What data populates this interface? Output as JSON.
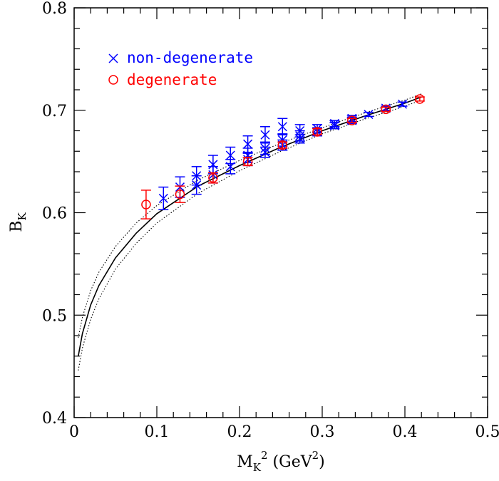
{
  "chart_data": {
    "type": "scatter",
    "xlim": [
      0,
      0.5
    ],
    "ylim": [
      0.4,
      0.8
    ],
    "x_ticks": [
      "0",
      "0.1",
      "0.2",
      "0.3",
      "0.4",
      "0.5"
    ],
    "y_ticks": [
      "0.4",
      "0.5",
      "0.6",
      "0.7",
      "0.8"
    ],
    "xlabel": {
      "base": "M",
      "sub": "K",
      "sup": "2",
      "unit_open": " (GeV",
      "unit_sup": "2",
      "unit_close": ")"
    },
    "ylabel": {
      "base": "B",
      "sub": "K"
    },
    "legend_position": "top-left",
    "series": [
      {
        "name": "non-degenerate",
        "marker": "cross",
        "color": "#0000ff",
        "points": [
          {
            "x": 0.108,
            "y": 0.614,
            "err": 0.011
          },
          {
            "x": 0.128,
            "y": 0.625,
            "err": 0.01
          },
          {
            "x": 0.148,
            "y": 0.627,
            "err": 0.009
          },
          {
            "x": 0.148,
            "y": 0.636,
            "err": 0.009
          },
          {
            "x": 0.168,
            "y": 0.637,
            "err": 0.008
          },
          {
            "x": 0.168,
            "y": 0.647,
            "err": 0.009
          },
          {
            "x": 0.189,
            "y": 0.645,
            "err": 0.007
          },
          {
            "x": 0.189,
            "y": 0.656,
            "err": 0.008
          },
          {
            "x": 0.21,
            "y": 0.652,
            "err": 0.006
          },
          {
            "x": 0.21,
            "y": 0.656,
            "err": 0.007
          },
          {
            "x": 0.21,
            "y": 0.667,
            "err": 0.008
          },
          {
            "x": 0.231,
            "y": 0.659,
            "err": 0.005
          },
          {
            "x": 0.231,
            "y": 0.663,
            "err": 0.006
          },
          {
            "x": 0.231,
            "y": 0.676,
            "err": 0.008
          },
          {
            "x": 0.252,
            "y": 0.666,
            "err": 0.005
          },
          {
            "x": 0.252,
            "y": 0.671,
            "err": 0.006
          },
          {
            "x": 0.252,
            "y": 0.684,
            "err": 0.008
          },
          {
            "x": 0.273,
            "y": 0.672,
            "err": 0.004
          },
          {
            "x": 0.273,
            "y": 0.675,
            "err": 0.005
          },
          {
            "x": 0.273,
            "y": 0.68,
            "err": 0.006
          },
          {
            "x": 0.294,
            "y": 0.679,
            "err": 0.004
          },
          {
            "x": 0.294,
            "y": 0.682,
            "err": 0.004
          },
          {
            "x": 0.315,
            "y": 0.685,
            "err": 0.003
          },
          {
            "x": 0.315,
            "y": 0.687,
            "err": 0.003
          },
          {
            "x": 0.336,
            "y": 0.69,
            "err": 0.003
          },
          {
            "x": 0.336,
            "y": 0.692,
            "err": 0.003
          },
          {
            "x": 0.356,
            "y": 0.696,
            "err": 0.002
          },
          {
            "x": 0.377,
            "y": 0.702,
            "err": 0.002
          },
          {
            "x": 0.397,
            "y": 0.706,
            "err": 0.002
          }
        ]
      },
      {
        "name": "degenerate",
        "marker": "circle",
        "color": "#ff0000",
        "points": [
          {
            "x": 0.087,
            "y": 0.608,
            "err": 0.014
          },
          {
            "x": 0.128,
            "y": 0.618,
            "err": 0.008
          },
          {
            "x": 0.168,
            "y": 0.634,
            "err": 0.005
          },
          {
            "x": 0.21,
            "y": 0.65,
            "err": 0.004
          },
          {
            "x": 0.252,
            "y": 0.666,
            "err": 0.003
          },
          {
            "x": 0.294,
            "y": 0.679,
            "err": 0.003
          },
          {
            "x": 0.336,
            "y": 0.69,
            "err": 0.002
          },
          {
            "x": 0.377,
            "y": 0.701,
            "err": 0.002
          },
          {
            "x": 0.418,
            "y": 0.711,
            "err": 0.002
          }
        ]
      }
    ],
    "fit_curves": [
      {
        "style": "solid",
        "color": "#000000",
        "x": [
          0.005,
          0.01,
          0.02,
          0.03,
          0.05,
          0.075,
          0.1,
          0.15,
          0.2,
          0.25,
          0.3,
          0.35,
          0.4,
          0.42
        ],
        "y": [
          0.46,
          0.482,
          0.51,
          0.529,
          0.556,
          0.58,
          0.599,
          0.626,
          0.646,
          0.664,
          0.68,
          0.694,
          0.707,
          0.713
        ]
      },
      {
        "style": "dotted",
        "color": "#000000",
        "x": [
          0.005,
          0.01,
          0.02,
          0.03,
          0.05,
          0.075,
          0.1,
          0.15,
          0.2,
          0.25,
          0.3,
          0.35,
          0.4,
          0.42
        ],
        "y": [
          0.478,
          0.498,
          0.524,
          0.542,
          0.567,
          0.59,
          0.607,
          0.632,
          0.651,
          0.668,
          0.683,
          0.697,
          0.71,
          0.716
        ]
      },
      {
        "style": "dotted",
        "color": "#000000",
        "x": [
          0.005,
          0.01,
          0.02,
          0.03,
          0.05,
          0.075,
          0.1,
          0.15,
          0.2,
          0.25,
          0.3,
          0.35,
          0.4,
          0.42
        ],
        "y": [
          0.446,
          0.468,
          0.496,
          0.516,
          0.545,
          0.57,
          0.59,
          0.619,
          0.641,
          0.66,
          0.677,
          0.691,
          0.704,
          0.71
        ]
      }
    ]
  }
}
